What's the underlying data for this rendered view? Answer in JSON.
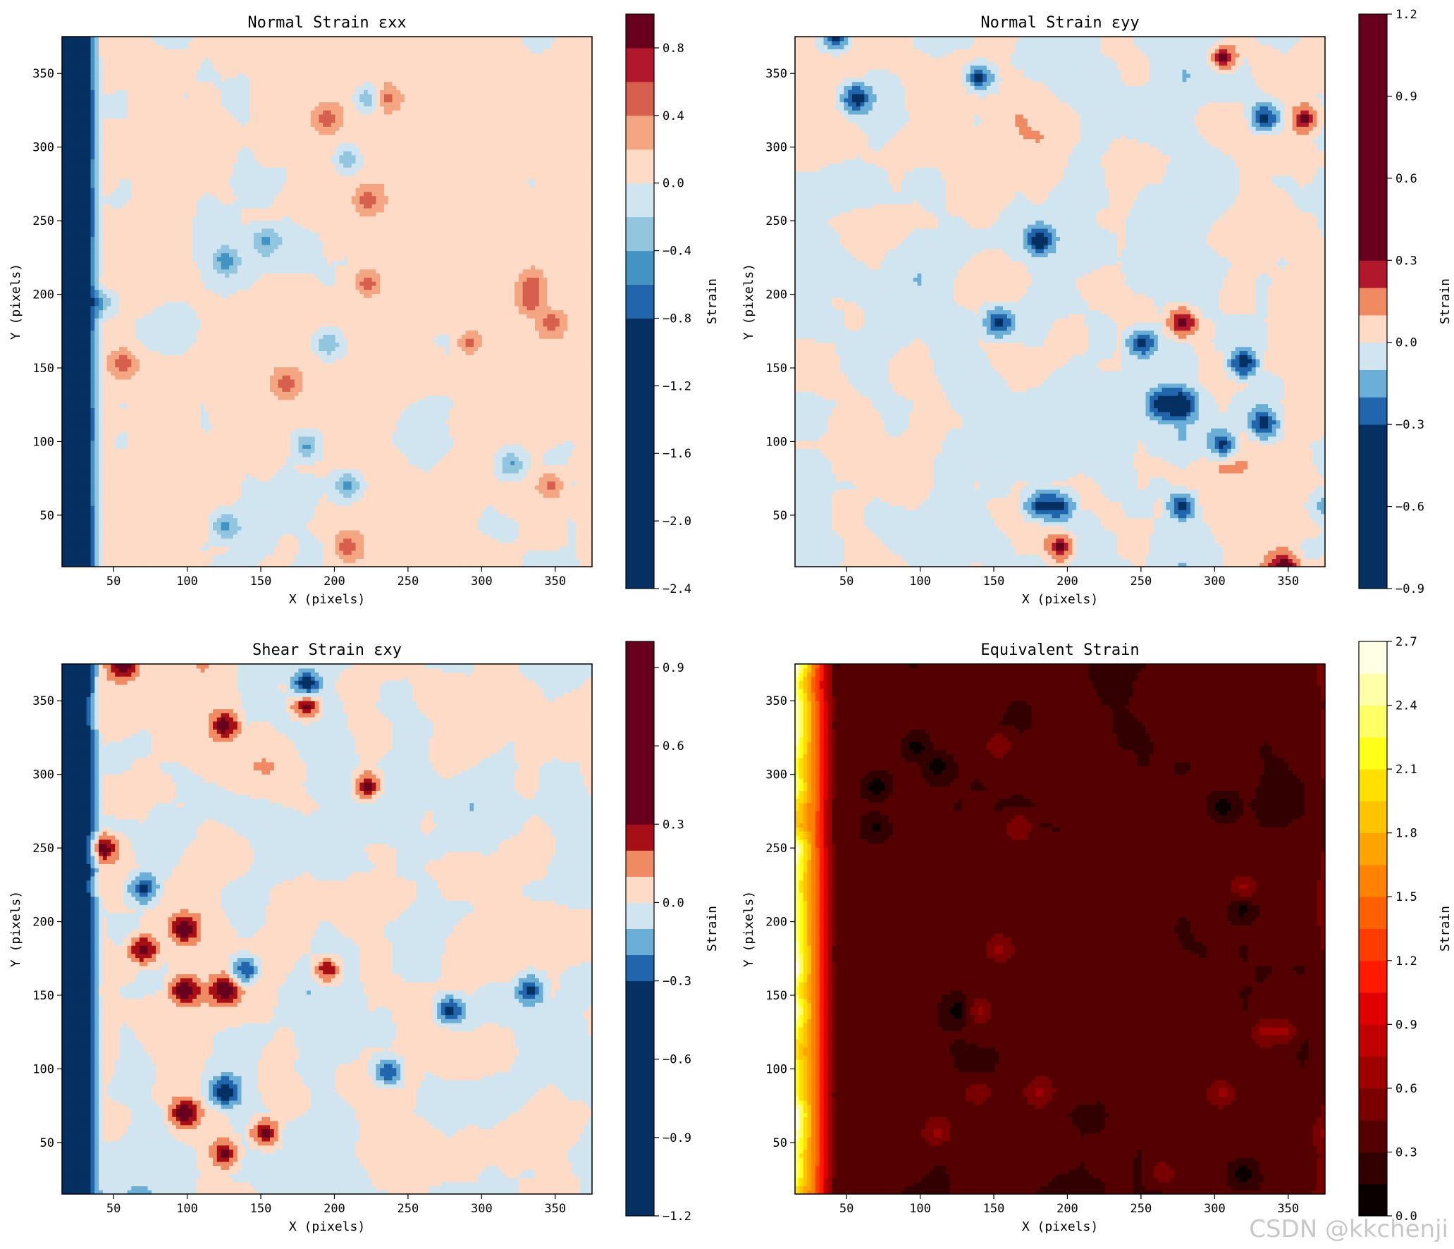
{
  "chart_data": [
    {
      "type": "heatmap",
      "title": "Normal Strain εxx",
      "xlabel": "X (pixels)",
      "ylabel": "Y (pixels)",
      "xlim": [
        15,
        375
      ],
      "ylim": [
        15,
        375
      ],
      "xticks": [
        50,
        100,
        150,
        200,
        250,
        300,
        350
      ],
      "yticks": [
        50,
        100,
        150,
        200,
        250,
        300,
        350
      ],
      "colorbar": {
        "label": "Strain",
        "range": [
          -2.4,
          1.0
        ],
        "ticks": [
          -2.4,
          -2.0,
          -1.6,
          -1.2,
          -0.8,
          -0.4,
          0.0,
          0.4,
          0.8
        ],
        "tick_labels": [
          "−2.4",
          "−2.0",
          "−1.6",
          "−1.2",
          "−0.8",
          "−0.4",
          "0.0",
          "0.4",
          "0.8"
        ],
        "levels": [
          -2.4,
          -0.8,
          -0.6,
          -0.4,
          -0.2,
          0.0,
          0.2,
          0.4,
          0.6,
          0.8,
          1.0
        ],
        "colors": [
          "#053061",
          "#2166ac",
          "#4393c3",
          "#92c5de",
          "#d1e5f0",
          "#fddbc7",
          "#f4a582",
          "#d6604d",
          "#b2182b",
          "#67001f"
        ]
      },
      "pattern": {
        "base": 0.05,
        "spread": 0.25,
        "left_edge": -2.3,
        "right_edge": 0.2,
        "seed": 11
      }
    },
    {
      "type": "heatmap",
      "title": "Normal Strain εyy",
      "xlabel": "X (pixels)",
      "ylabel": "Y (pixels)",
      "xlim": [
        15,
        375
      ],
      "ylim": [
        15,
        375
      ],
      "xticks": [
        50,
        100,
        150,
        200,
        250,
        300,
        350
      ],
      "yticks": [
        50,
        100,
        150,
        200,
        250,
        300,
        350
      ],
      "colorbar": {
        "label": "Strain",
        "range": [
          -0.9,
          1.2
        ],
        "ticks": [
          -0.9,
          -0.6,
          -0.3,
          0.0,
          0.3,
          0.6,
          0.9,
          1.2
        ],
        "tick_labels": [
          "−0.9",
          "−0.6",
          "−0.3",
          "0.0",
          "0.3",
          "0.6",
          "0.9",
          "1.2"
        ],
        "levels": [
          -0.9,
          -0.3,
          -0.2,
          -0.1,
          0.0,
          0.1,
          0.2,
          0.3,
          1.2
        ],
        "colors": [
          "#053061",
          "#2166ac",
          "#6baed6",
          "#d1e5f0",
          "#fddbc7",
          "#ef8a62",
          "#b2182b",
          "#67001f"
        ]
      },
      "pattern": {
        "base": 0.0,
        "spread": 0.2,
        "left_edge": 0.0,
        "right_edge": 0.0,
        "seed": 23
      }
    },
    {
      "type": "heatmap",
      "title": "Shear Strain εxy",
      "xlabel": "X (pixels)",
      "ylabel": "Y (pixels)",
      "xlim": [
        15,
        375
      ],
      "ylim": [
        15,
        375
      ],
      "xticks": [
        50,
        100,
        150,
        200,
        250,
        300,
        350
      ],
      "yticks": [
        50,
        100,
        150,
        200,
        250,
        300,
        350
      ],
      "colorbar": {
        "label": "Strain",
        "range": [
          -1.2,
          1.0
        ],
        "ticks": [
          -1.2,
          -0.9,
          -0.6,
          -0.3,
          0.0,
          0.3,
          0.6,
          0.9
        ],
        "tick_labels": [
          "−1.2",
          "−0.9",
          "−0.6",
          "−0.3",
          "0.0",
          "0.3",
          "0.6",
          "0.9"
        ],
        "levels": [
          -1.2,
          -0.3,
          -0.2,
          -0.1,
          0.0,
          0.1,
          0.2,
          0.3,
          1.0
        ],
        "colors": [
          "#053061",
          "#2166ac",
          "#6baed6",
          "#d1e5f0",
          "#fddbc7",
          "#ef8a62",
          "#a50f15",
          "#67001f"
        ]
      },
      "pattern": {
        "base": 0.0,
        "spread": 0.2,
        "left_edge": -0.9,
        "right_edge": 0.0,
        "seed": 37
      }
    },
    {
      "type": "heatmap",
      "title": "Equivalent Strain",
      "xlabel": "X (pixels)",
      "ylabel": "Y (pixels)",
      "xlim": [
        15,
        375
      ],
      "ylim": [
        15,
        375
      ],
      "xticks": [
        50,
        100,
        150,
        200,
        250,
        300,
        350
      ],
      "yticks": [
        50,
        100,
        150,
        200,
        250,
        300,
        350
      ],
      "colorbar": {
        "label": "Strain",
        "range": [
          0.0,
          2.7
        ],
        "ticks": [
          0.0,
          0.3,
          0.6,
          0.9,
          1.2,
          1.5,
          1.8,
          2.1,
          2.4,
          2.7
        ],
        "tick_labels": [
          "0.0",
          "0.3",
          "0.6",
          "0.9",
          "1.2",
          "1.5",
          "1.8",
          "2.1",
          "2.4",
          "2.7"
        ],
        "levels": [
          0.0,
          0.15,
          0.3,
          0.45,
          0.6,
          0.75,
          0.9,
          1.05,
          1.2,
          1.35,
          1.5,
          1.65,
          1.8,
          1.95,
          2.1,
          2.25,
          2.4,
          2.55,
          2.7
        ],
        "colors": [
          "#0b0000",
          "#330000",
          "#550000",
          "#7a0000",
          "#9e0000",
          "#c00000",
          "#e00000",
          "#ff1a00",
          "#ff3d00",
          "#ff6000",
          "#ff8200",
          "#ffa300",
          "#ffc400",
          "#ffe000",
          "#ffff1a",
          "#ffff66",
          "#ffffaa",
          "#ffffe6"
        ]
      },
      "pattern": {
        "base": 0.35,
        "spread": 0.15,
        "left_edge": 2.4,
        "right_edge": 0.6,
        "seed": 53
      }
    }
  ],
  "watermark": "CSDN @kkchenji"
}
